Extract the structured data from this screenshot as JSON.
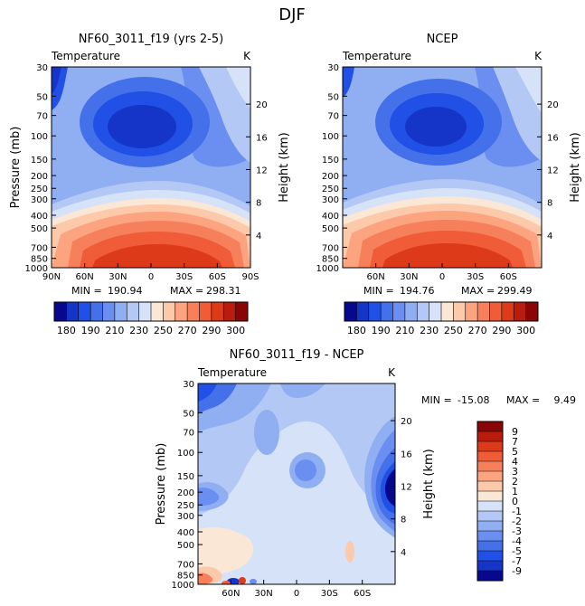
{
  "page_title": "DJF",
  "chart_data": [
    {
      "type": "heatmap",
      "title": "NF60_3011_f19 (yrs 2-5)",
      "variable": "Temperature",
      "units": "K",
      "ylabel": "Pressure (mb)",
      "ylabel_right": "Height (km)",
      "x_ticks": [
        "90N",
        "60N",
        "30N",
        "0",
        "30S",
        "60S",
        "90S"
      ],
      "pressure_ticks": [
        "30",
        "50",
        "70",
        "100",
        "150",
        "200",
        "250",
        "300",
        "400",
        "500",
        "700",
        "850",
        "1000"
      ],
      "height_ticks": [
        "4",
        "8",
        "12",
        "16",
        "20"
      ],
      "stats": {
        "min_label": "MIN =",
        "min": "190.94",
        "max_label": "MAX =",
        "max": "298.31"
      },
      "colorbar_labels": [
        "180",
        "190",
        "210",
        "230",
        "250",
        "270",
        "290",
        "300"
      ],
      "colorbar_colors": [
        "#08088f",
        "#1535c8",
        "#2050e6",
        "#4470ea",
        "#6b8ff0",
        "#90aef2",
        "#b3c8f4",
        "#d5e2f8",
        "#fbe7d6",
        "#fcc9ab",
        "#fca47f",
        "#f7805c",
        "#f05b38",
        "#dd3a1a",
        "#b81c0c",
        "#8a0606"
      ]
    },
    {
      "type": "heatmap",
      "title": "NCEP",
      "variable": "Temperature",
      "units": "K",
      "ylabel_right": "Height (km)",
      "x_ticks": [
        "60N",
        "30N",
        "0",
        "30S",
        "60S"
      ],
      "pressure_ticks": [
        "30",
        "50",
        "70",
        "100",
        "150",
        "200",
        "250",
        "300",
        "400",
        "500",
        "700",
        "850",
        "1000"
      ],
      "height_ticks": [
        "4",
        "8",
        "12",
        "16",
        "20"
      ],
      "stats": {
        "min_label": "MIN =",
        "min": "194.76",
        "max_label": "MAX =",
        "max": "299.49"
      },
      "colorbar_labels": [
        "180",
        "190",
        "210",
        "230",
        "250",
        "270",
        "290",
        "300"
      ],
      "colorbar_colors": [
        "#08088f",
        "#1535c8",
        "#2050e6",
        "#4470ea",
        "#6b8ff0",
        "#90aef2",
        "#b3c8f4",
        "#d5e2f8",
        "#fbe7d6",
        "#fcc9ab",
        "#fca47f",
        "#f7805c",
        "#f05b38",
        "#dd3a1a",
        "#b81c0c",
        "#8a0606"
      ]
    },
    {
      "type": "heatmap",
      "title": "NF60_3011_f19 - NCEP",
      "variable": "Temperature",
      "units": "K",
      "ylabel": "Pressure (mb)",
      "ylabel_right": "Height (km)",
      "x_ticks": [
        "60N",
        "30N",
        "0",
        "30S",
        "60S"
      ],
      "pressure_ticks": [
        "30",
        "50",
        "70",
        "100",
        "150",
        "200",
        "250",
        "300",
        "400",
        "500",
        "700",
        "850",
        "1000"
      ],
      "height_ticks": [
        "4",
        "8",
        "12",
        "16",
        "20"
      ],
      "stats": {
        "min_label": "MIN =",
        "min": "-15.08",
        "max_label": "MAX =",
        "max": "9.49"
      },
      "colorbar_labels": [
        "9",
        "7",
        "5",
        "4",
        "3",
        "2",
        "1",
        "0",
        "-1",
        "-2",
        "-3",
        "-4",
        "-5",
        "-7",
        "-9"
      ],
      "colorbar_colors": [
        "#8a0606",
        "#b81c0c",
        "#dd3a1a",
        "#f05b38",
        "#f7805c",
        "#fca47f",
        "#fcc9ab",
        "#fbe7d6",
        "#d5e2f8",
        "#b3c8f4",
        "#90aef2",
        "#6b8ff0",
        "#4470ea",
        "#2050e6",
        "#1535c8",
        "#08088f"
      ]
    }
  ]
}
